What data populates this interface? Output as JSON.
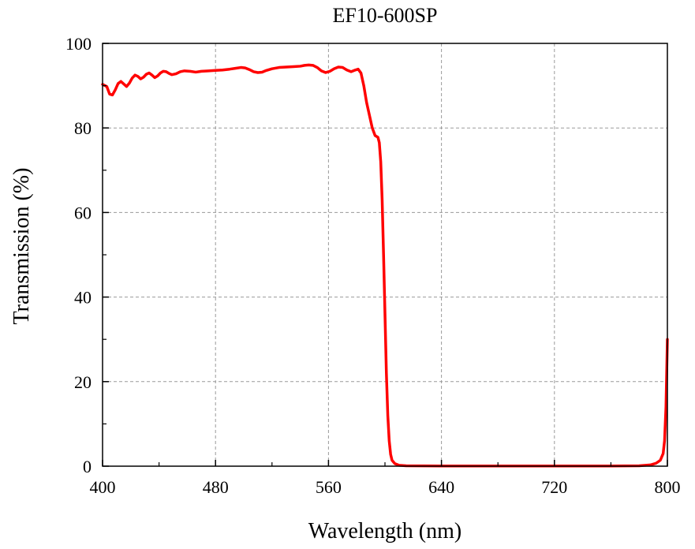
{
  "chart_data": {
    "type": "line",
    "title": "EF10-600SP",
    "xlabel": "Wavelength (nm)",
    "ylabel": "Transmission (%)",
    "xlim": [
      400,
      800
    ],
    "ylim": [
      0,
      100
    ],
    "x_ticks": [
      "400",
      "480",
      "560",
      "640",
      "720",
      "800"
    ],
    "y_ticks": [
      "0",
      "20",
      "40",
      "60",
      "80",
      "100"
    ],
    "grid": true,
    "series": [
      {
        "color": "#ff0000",
        "points": [
          [
            400,
            90.3
          ],
          [
            403,
            89.8
          ],
          [
            405,
            88.0
          ],
          [
            407,
            87.8
          ],
          [
            409,
            89.0
          ],
          [
            411,
            90.5
          ],
          [
            413,
            91.0
          ],
          [
            415,
            90.4
          ],
          [
            417,
            89.8
          ],
          [
            419,
            90.6
          ],
          [
            421,
            91.8
          ],
          [
            423,
            92.5
          ],
          [
            425,
            92.2
          ],
          [
            427,
            91.6
          ],
          [
            429,
            92.0
          ],
          [
            431,
            92.7
          ],
          [
            433,
            93.0
          ],
          [
            435,
            92.5
          ],
          [
            437,
            91.9
          ],
          [
            439,
            92.3
          ],
          [
            441,
            93.0
          ],
          [
            443,
            93.4
          ],
          [
            445,
            93.3
          ],
          [
            447,
            92.9
          ],
          [
            449,
            92.6
          ],
          [
            452,
            92.8
          ],
          [
            455,
            93.3
          ],
          [
            458,
            93.5
          ],
          [
            462,
            93.4
          ],
          [
            466,
            93.2
          ],
          [
            470,
            93.4
          ],
          [
            475,
            93.5
          ],
          [
            480,
            93.6
          ],
          [
            485,
            93.7
          ],
          [
            490,
            93.9
          ],
          [
            494,
            94.1
          ],
          [
            498,
            94.3
          ],
          [
            501,
            94.2
          ],
          [
            504,
            93.8
          ],
          [
            507,
            93.3
          ],
          [
            510,
            93.1
          ],
          [
            513,
            93.2
          ],
          [
            516,
            93.6
          ],
          [
            520,
            94.0
          ],
          [
            525,
            94.3
          ],
          [
            530,
            94.4
          ],
          [
            535,
            94.5
          ],
          [
            540,
            94.6
          ],
          [
            543,
            94.8
          ],
          [
            546,
            94.9
          ],
          [
            549,
            94.8
          ],
          [
            552,
            94.3
          ],
          [
            555,
            93.5
          ],
          [
            558,
            93.1
          ],
          [
            561,
            93.4
          ],
          [
            564,
            94.0
          ],
          [
            567,
            94.4
          ],
          [
            570,
            94.3
          ],
          [
            573,
            93.7
          ],
          [
            576,
            93.3
          ],
          [
            579,
            93.7
          ],
          [
            581,
            93.9
          ],
          [
            583,
            93.0
          ],
          [
            585,
            90.0
          ],
          [
            587,
            86.0
          ],
          [
            589,
            83.0
          ],
          [
            591,
            80.0
          ],
          [
            593,
            78.2
          ],
          [
            595,
            77.8
          ],
          [
            596,
            76.5
          ],
          [
            597,
            72.0
          ],
          [
            598,
            63.0
          ],
          [
            599,
            50.0
          ],
          [
            600,
            36.0
          ],
          [
            601,
            22.0
          ],
          [
            602,
            12.0
          ],
          [
            603,
            6.0
          ],
          [
            604,
            2.8
          ],
          [
            605,
            1.4
          ],
          [
            607,
            0.6
          ],
          [
            610,
            0.2
          ],
          [
            615,
            0.1
          ],
          [
            640,
            0.05
          ],
          [
            700,
            0.05
          ],
          [
            760,
            0.05
          ],
          [
            780,
            0.1
          ],
          [
            788,
            0.3
          ],
          [
            792,
            0.7
          ],
          [
            795,
            1.4
          ],
          [
            797,
            3.0
          ],
          [
            798,
            6.0
          ],
          [
            799,
            14.0
          ],
          [
            800,
            30.0
          ]
        ]
      }
    ]
  }
}
